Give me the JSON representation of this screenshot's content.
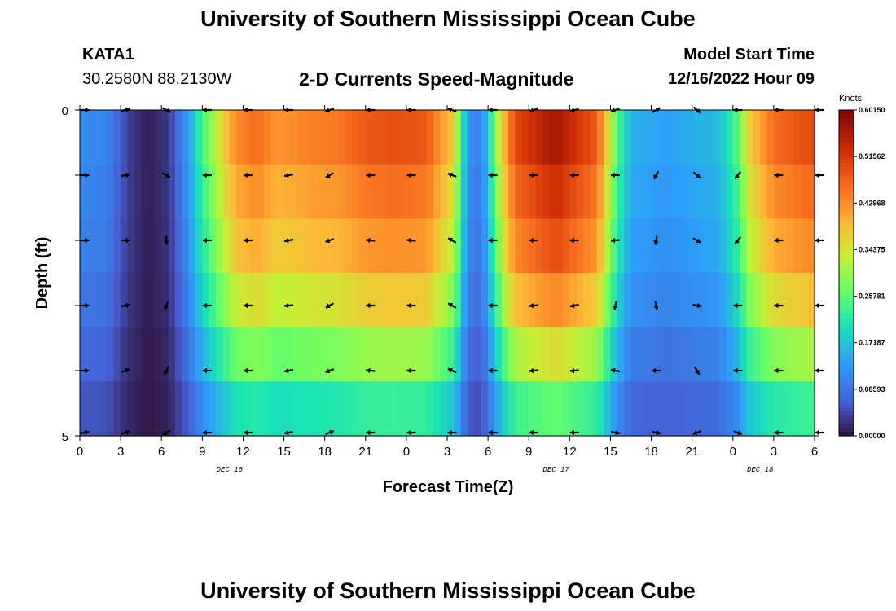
{
  "header": {
    "title": "University of Southern Mississippi Ocean Cube",
    "station": "KATA1",
    "coordinates": "30.2580N  88.2130W",
    "subtitle": "2-D Currents Speed-Magnitude",
    "model_start_label": "Model Start Time",
    "model_start_value": "12/16/2022 Hour 09"
  },
  "footer": {
    "title": "University of Southern Mississippi Ocean Cube"
  },
  "chart_data": {
    "type": "heatmap",
    "title": "2-D Currents Speed-Magnitude",
    "xlabel": "Forecast Time(Z)",
    "ylabel": "Depth (ft)",
    "x_tick_labels": [
      "0",
      "3",
      "6",
      "9",
      "12",
      "15",
      "18",
      "21",
      "0",
      "3",
      "6",
      "9",
      "12",
      "15",
      "18",
      "21",
      "0",
      "3",
      "6"
    ],
    "x_range_hours": [
      0,
      54
    ],
    "date_labels": [
      {
        "text": "DEC 16",
        "hour": 11
      },
      {
        "text": "DEC 17",
        "hour": 35
      },
      {
        "text": "DEC 18",
        "hour": 50
      }
    ],
    "y_tick_labels": [
      "0",
      "5"
    ],
    "y_range_ft": [
      0,
      5
    ],
    "colorbar": {
      "label": "Knots",
      "min": 0.0,
      "max": 0.6015,
      "tick_labels": [
        "0.60150",
        "0.51562",
        "0.42968",
        "0.34375",
        "0.25781",
        "0.17187",
        "0.08593",
        "0.00000"
      ]
    },
    "profile_speed_knots": [
      {
        "h": 0,
        "v": 0.12
      },
      {
        "h": 2,
        "v": 0.11
      },
      {
        "h": 3.5,
        "v": 0.04
      },
      {
        "h": 5,
        "v": 0.01
      },
      {
        "h": 6.5,
        "v": 0.03
      },
      {
        "h": 8,
        "v": 0.14
      },
      {
        "h": 9,
        "v": 0.25
      },
      {
        "h": 10,
        "v": 0.34
      },
      {
        "h": 11.5,
        "v": 0.45
      },
      {
        "h": 13,
        "v": 0.48
      },
      {
        "h": 14.5,
        "v": 0.44
      },
      {
        "h": 17,
        "v": 0.46
      },
      {
        "h": 19,
        "v": 0.47
      },
      {
        "h": 21,
        "v": 0.5
      },
      {
        "h": 23,
        "v": 0.51
      },
      {
        "h": 25.5,
        "v": 0.5
      },
      {
        "h": 27.5,
        "v": 0.38
      },
      {
        "h": 28.5,
        "v": 0.13
      },
      {
        "h": 29.5,
        "v": 0.1
      },
      {
        "h": 31,
        "v": 0.38
      },
      {
        "h": 32,
        "v": 0.52
      },
      {
        "h": 35,
        "v": 0.59
      },
      {
        "h": 38,
        "v": 0.5
      },
      {
        "h": 39.5,
        "v": 0.26
      },
      {
        "h": 40.5,
        "v": 0.16
      },
      {
        "h": 43,
        "v": 0.14
      },
      {
        "h": 47,
        "v": 0.17
      },
      {
        "h": 48.3,
        "v": 0.26
      },
      {
        "h": 49.3,
        "v": 0.39
      },
      {
        "h": 51,
        "v": 0.48
      },
      {
        "h": 54,
        "v": 0.52
      }
    ],
    "depth_factor": [
      0.96,
      0.9,
      0.84,
      0.74,
      0.6,
      0.45
    ],
    "vector_depths_ft": [
      0,
      1,
      2,
      3,
      4,
      5
    ],
    "vector_hours": [
      0,
      3,
      6,
      9,
      12,
      15,
      18,
      21,
      24,
      27,
      30,
      33,
      36,
      39,
      42,
      45,
      48,
      51,
      54
    ],
    "vector_directions_deg": [
      [
        0,
        10,
        -30,
        180,
        180,
        180,
        200,
        180,
        180,
        160,
        180,
        200,
        190,
        200,
        30,
        -40,
        180,
        180,
        180
      ],
      [
        0,
        10,
        -30,
        180,
        180,
        190,
        210,
        180,
        180,
        160,
        180,
        180,
        180,
        180,
        240,
        -40,
        230,
        180,
        180
      ],
      [
        0,
        0,
        -90,
        180,
        180,
        190,
        200,
        175,
        175,
        150,
        180,
        180,
        180,
        185,
        -100,
        -30,
        230,
        180,
        180
      ],
      [
        0,
        10,
        -110,
        180,
        180,
        185,
        210,
        180,
        180,
        150,
        180,
        185,
        190,
        -100,
        -80,
        -10,
        180,
        180,
        180
      ],
      [
        0,
        20,
        -120,
        180,
        180,
        190,
        200,
        175,
        180,
        155,
        180,
        185,
        185,
        170,
        180,
        -60,
        180,
        180,
        180
      ],
      [
        10,
        20,
        -150,
        180,
        180,
        190,
        20,
        180,
        180,
        180,
        180,
        180,
        180,
        -10,
        -10,
        200,
        -20,
        180,
        180
      ]
    ]
  }
}
